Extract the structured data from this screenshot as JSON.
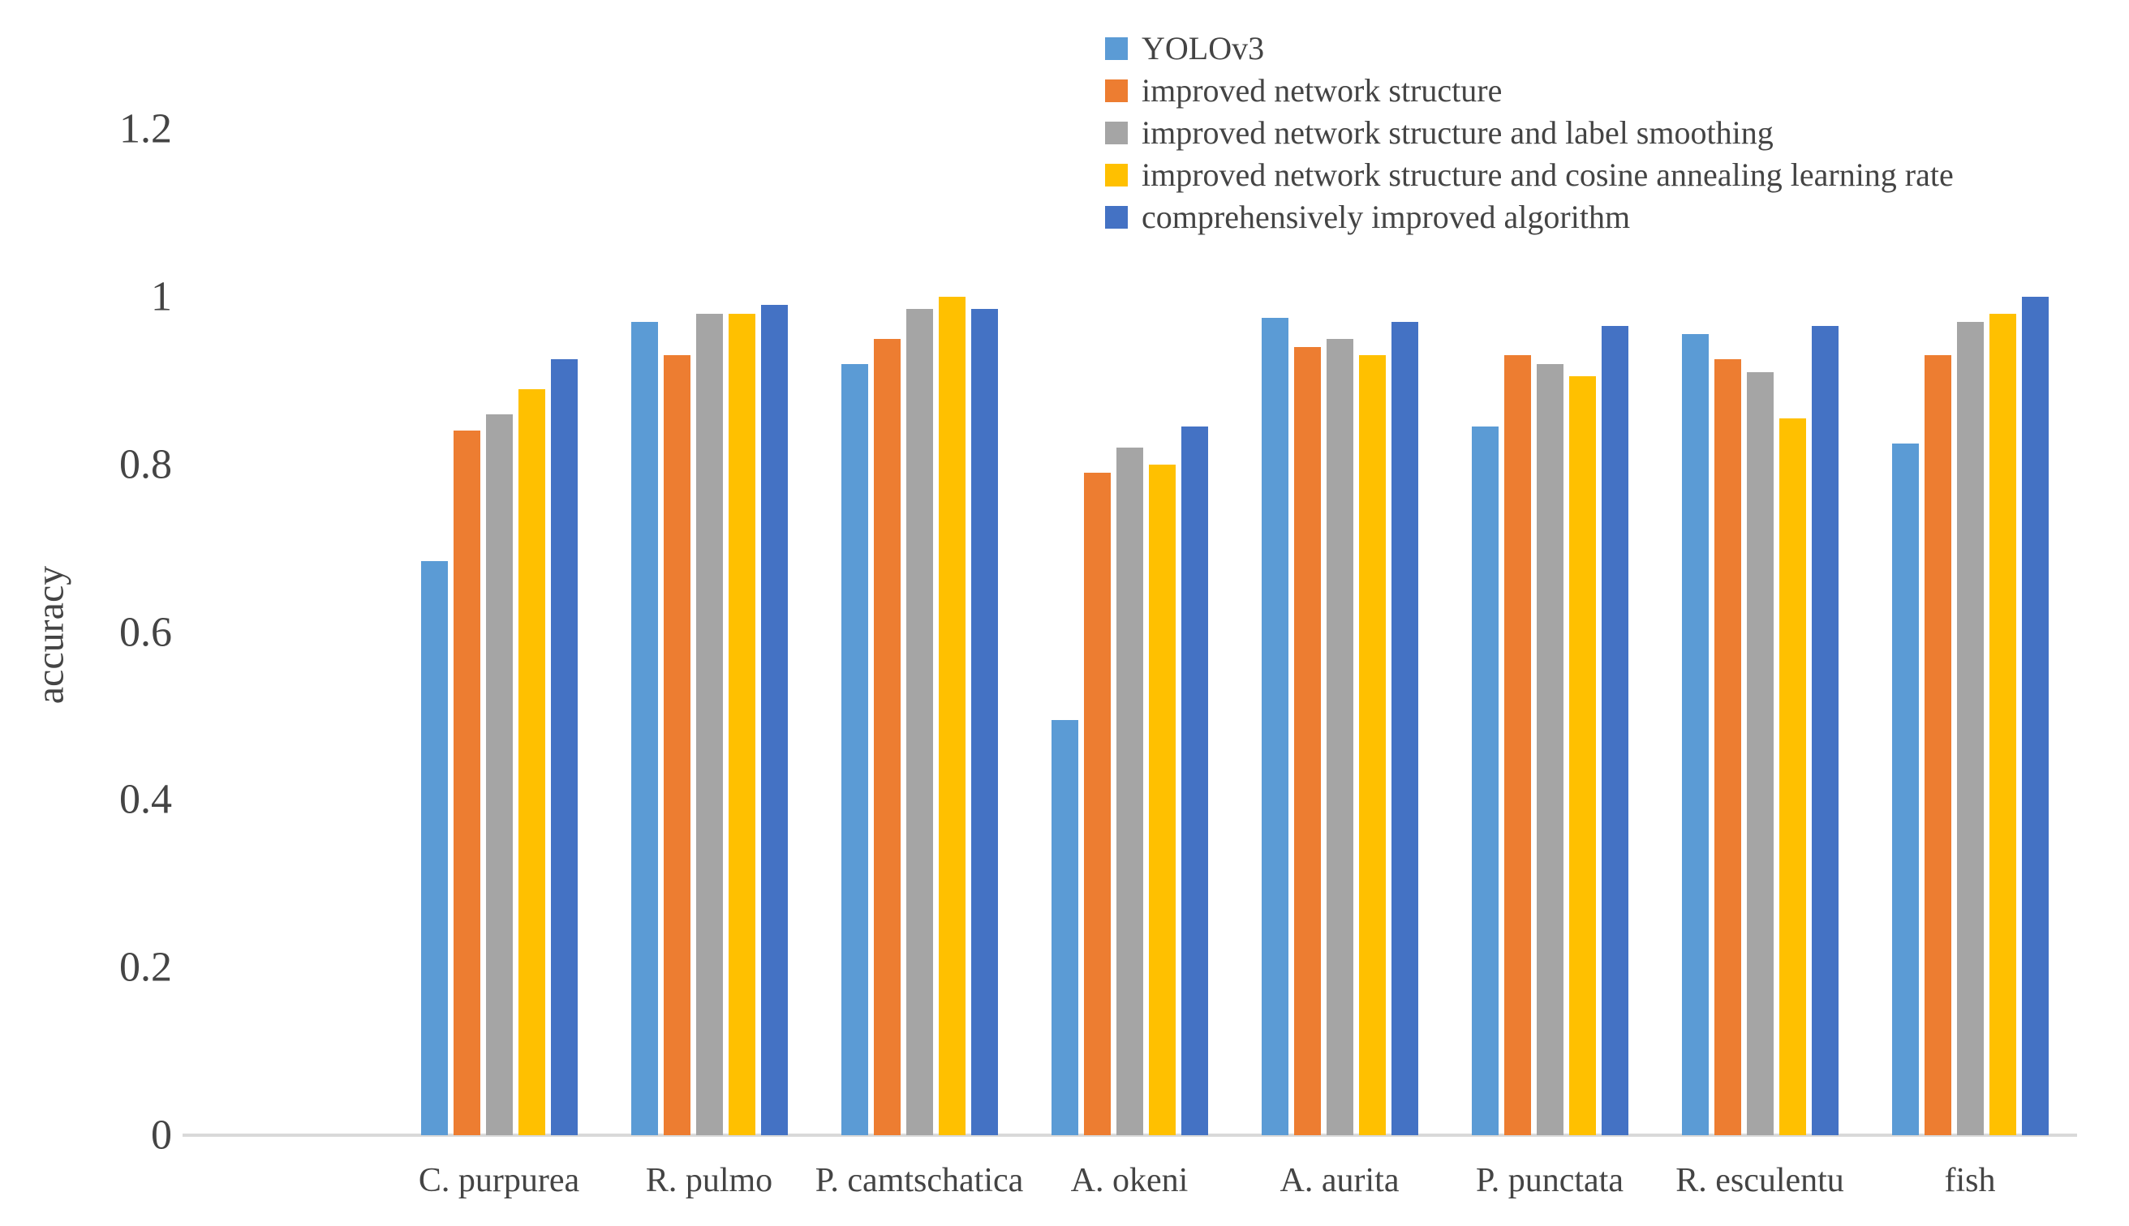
{
  "chart_data": {
    "type": "bar",
    "title": "",
    "xlabel": "",
    "ylabel": "accuracy",
    "ylim": [
      0,
      1.2
    ],
    "yticks": [
      0,
      0.2,
      0.4,
      0.6,
      0.8,
      1,
      1.2
    ],
    "ytick_labels": [
      "0",
      "0.2",
      "0.4",
      "0.6",
      "0.8",
      "1",
      "1.2"
    ],
    "grid": false,
    "legend_position": "top-center-inside",
    "categories": [
      "C. purpurea",
      "R. pulmo",
      "P. camtschatica",
      "A. okeni",
      "A. aurita",
      "P. punctata",
      "R. esculentu",
      "fish"
    ],
    "series": [
      {
        "name": "YOLOv3",
        "color": "#5B9BD5",
        "values": [
          0.685,
          0.97,
          0.92,
          0.495,
          0.975,
          0.845,
          0.955,
          0.825
        ]
      },
      {
        "name": "improved network structure",
        "color": "#ED7D31",
        "values": [
          0.84,
          0.93,
          0.95,
          0.79,
          0.94,
          0.93,
          0.925,
          0.93
        ]
      },
      {
        "name": "improved network structure and label smoothing",
        "color": "#A5A5A5",
        "values": [
          0.86,
          0.98,
          0.985,
          0.82,
          0.95,
          0.92,
          0.91,
          0.97
        ]
      },
      {
        "name": "improved network structure and cosine annealing learning rate",
        "color": "#FFC000",
        "values": [
          0.89,
          0.98,
          1.0,
          0.8,
          0.93,
          0.905,
          0.855,
          0.98
        ]
      },
      {
        "name": "comprehensively improved algorithm",
        "color": "#4472C4",
        "values": [
          0.925,
          0.99,
          0.985,
          0.845,
          0.97,
          0.965,
          0.965,
          1.0
        ]
      }
    ]
  },
  "colors": {
    "background": "#FFFFFF",
    "axis_line": "#D9D9D9",
    "text": "#444444"
  }
}
